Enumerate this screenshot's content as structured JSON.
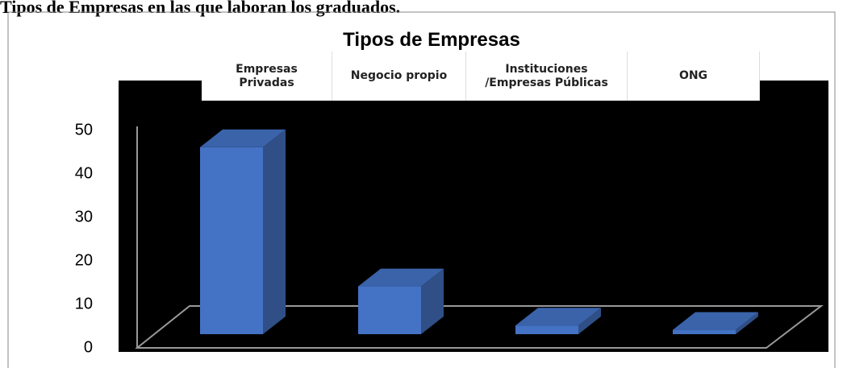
{
  "heading": "Tipos de Empresas en las que laboran los graduados.",
  "chart_data": {
    "type": "bar",
    "title": "Tipos de Empresas",
    "categories": [
      "Empresas Privadas",
      "Negocio propio",
      "Instituciones /Empresas Públicas",
      "ONG"
    ],
    "values": [
      43,
      11,
      2,
      1
    ],
    "color": "#4472c4",
    "ylim": [
      0,
      50
    ],
    "yticks": [
      0,
      10,
      20,
      30,
      40,
      50
    ]
  }
}
